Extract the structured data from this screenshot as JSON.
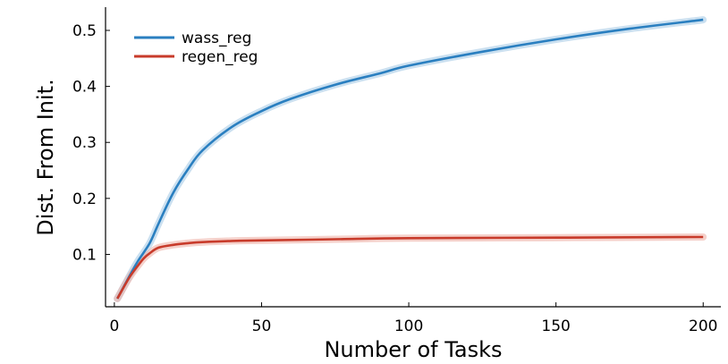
{
  "chart_data": {
    "type": "line",
    "title": "",
    "xlabel": "Number of Tasks",
    "ylabel": "Dist. From Init.",
    "xlim": [
      -3,
      206
    ],
    "ylim": [
      0.0065,
      0.5415
    ],
    "x_ticks": [
      0,
      50,
      100,
      150,
      200
    ],
    "x_tick_labels": [
      "0",
      "50",
      "100",
      "150",
      "200"
    ],
    "y_ticks": [
      0.1,
      0.2,
      0.3,
      0.4,
      0.5
    ],
    "y_tick_labels": [
      "0.1",
      "0.2",
      "0.3",
      "0.4",
      "0.5"
    ],
    "grid": false,
    "legend_position": "top-left",
    "series": [
      {
        "name": "wass_reg",
        "color": "#2a7fc0",
        "band_color": "#a9cbe6",
        "x": [
          1,
          5,
          8,
          12,
          15,
          20,
          25,
          30,
          40,
          50,
          60,
          75,
          90,
          100,
          125,
          150,
          175,
          200
        ],
        "y": [
          0.021,
          0.06,
          0.088,
          0.12,
          0.155,
          0.21,
          0.252,
          0.286,
          0.328,
          0.356,
          0.378,
          0.403,
          0.423,
          0.437,
          0.462,
          0.484,
          0.503,
          0.519
        ]
      },
      {
        "name": "regen_reg",
        "color": "#c83b2b",
        "band_color": "#eeb3a9",
        "x": [
          1,
          5,
          8,
          10,
          12,
          15,
          20,
          25,
          30,
          40,
          50,
          75,
          100,
          150,
          200
        ],
        "y": [
          0.021,
          0.058,
          0.08,
          0.093,
          0.102,
          0.112,
          0.117,
          0.12,
          0.122,
          0.124,
          0.125,
          0.127,
          0.129,
          0.13,
          0.131
        ]
      }
    ]
  }
}
